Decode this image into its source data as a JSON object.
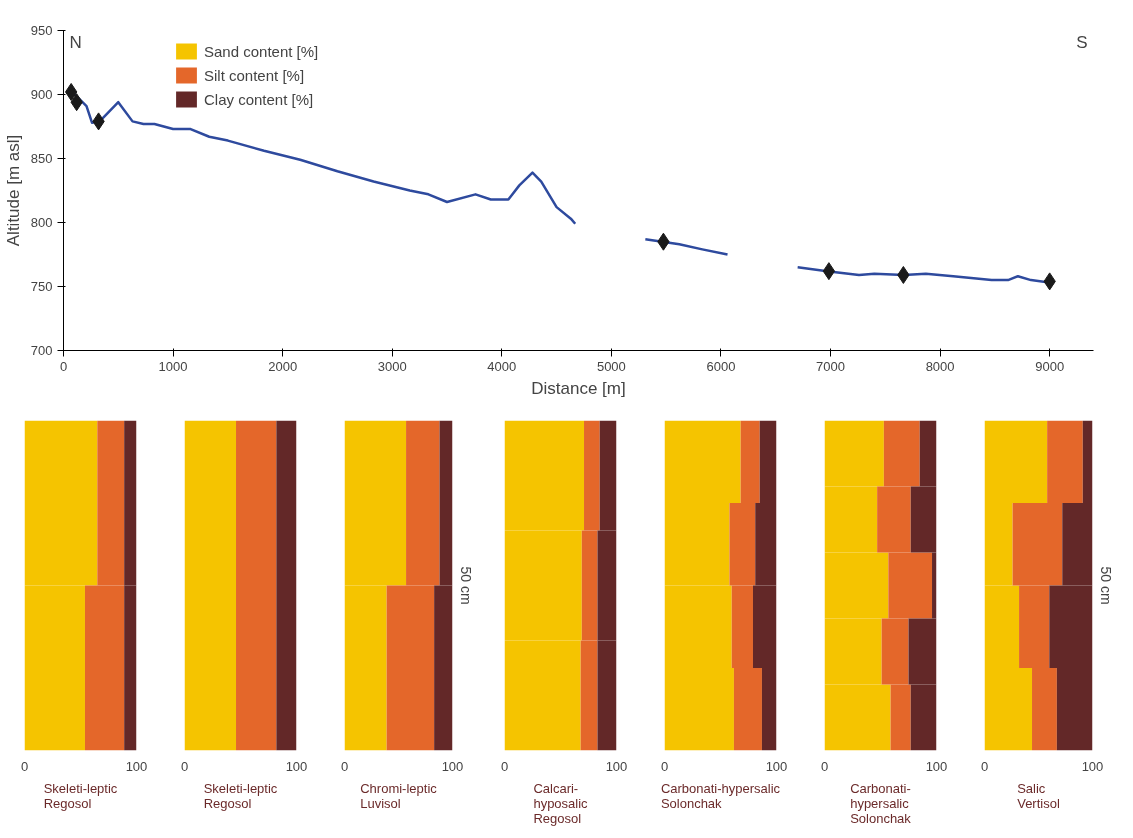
{
  "chart_data": [
    {
      "type": "line",
      "xlabel": "Distance [m]",
      "ylabel": "Altitude [m asl]",
      "xlim": [
        0,
        9400
      ],
      "ylim": [
        700,
        950
      ],
      "xticks": [
        0,
        1000,
        2000,
        3000,
        4000,
        5000,
        6000,
        7000,
        8000,
        9000
      ],
      "yticks": [
        700,
        750,
        800,
        850,
        900,
        950
      ],
      "grid": false,
      "annotations": [
        "N",
        "S"
      ],
      "series": [
        {
          "type": "line",
          "color": "#2e4a9e",
          "x": [
            80,
            210,
            260,
            330,
            500,
            630,
            730,
            830,
            1000,
            1160,
            1330,
            1500,
            1830,
            2160,
            2500,
            2830,
            3160,
            3330,
            3500,
            3760,
            3900,
            4060,
            4160,
            4280,
            4360,
            4500,
            4630,
            4670,
            4700,
            5310,
            5620,
            5830,
            6060,
            6400,
            6700,
            6970,
            7260,
            7400,
            7670,
            7870,
            8120,
            8470,
            8620,
            8710,
            8830,
            9010
          ],
          "values": [
            902,
            891,
            878,
            879,
            894,
            879,
            877,
            877,
            873,
            873,
            867,
            864,
            856,
            849,
            840,
            832,
            825,
            822,
            816,
            822,
            818,
            818,
            829,
            839,
            832,
            812,
            803,
            799,
            null,
            787,
            783,
            779,
            775,
            null,
            765,
            762,
            759,
            760,
            759,
            760,
            758,
            755,
            755,
            758,
            755,
            753
          ]
        },
        {
          "type": "scatter",
          "marker": "diamond",
          "color": "#1a1a1a",
          "x": [
            70,
            120,
            320,
            5475,
            6985,
            7665,
            9000
          ],
          "values": [
            902,
            894,
            879,
            785,
            762,
            759,
            754
          ]
        }
      ]
    },
    {
      "type": "bar",
      "orientation": "horizontal",
      "stacked": true,
      "title": "Skeleti-leptic\nRegosol",
      "categories": [
        null,
        null
      ],
      "xlim": [
        0,
        100
      ],
      "xticks": [
        0,
        100
      ],
      "tick_labels": "x",
      "legend": "top right",
      "series": [
        {
          "name": "Sand content [%]",
          "color": "#f5c400",
          "values": [
            65,
            54
          ]
        },
        {
          "name": "Silt content [%]",
          "color": "#e4672a",
          "values": [
            24,
            35
          ]
        },
        {
          "name": "Clay content [%]",
          "color": "#632828",
          "values": [
            11,
            11
          ]
        }
      ]
    },
    {
      "type": "bar",
      "orientation": "horizontal",
      "stacked": true,
      "title": "Skeleti-leptic\nRegosol",
      "categories": [
        null
      ],
      "xlim": [
        0,
        100
      ],
      "xticks": [
        0,
        100
      ],
      "tick_labels": "x",
      "series": [
        {
          "color": "#f5c400",
          "values": [
            46
          ]
        },
        {
          "color": "#e4672a",
          "values": [
            36
          ]
        },
        {
          "color": "#632828",
          "values": [
            18
          ]
        }
      ]
    },
    {
      "type": "bar",
      "orientation": "horizontal",
      "stacked": true,
      "title": "Chromi-leptic\nLuvisol",
      "categories": [
        null,
        null
      ],
      "xlim": [
        0,
        100
      ],
      "xticks": [
        0,
        100
      ],
      "tick_labels": "x",
      "annotations": [
        "50 cm"
      ],
      "series": [
        {
          "color": "#f5c400",
          "values": [
            57,
            39
          ]
        },
        {
          "color": "#e4672a",
          "values": [
            31,
            44
          ]
        },
        {
          "color": "#632828",
          "values": [
            12,
            17
          ]
        }
      ]
    },
    {
      "type": "bar",
      "orientation": "horizontal",
      "stacked": true,
      "title": "Calcari-\nhyposalic\nRegosol",
      "categories": [
        null,
        null,
        null
      ],
      "xlim": [
        0,
        100
      ],
      "xticks": [
        0,
        100
      ],
      "tick_labels": "x",
      "series": [
        {
          "color": "#f5c400",
          "values": [
            71,
            69,
            68
          ]
        },
        {
          "color": "#e4672a",
          "values": [
            14,
            14,
            15
          ]
        },
        {
          "color": "#632828",
          "values": [
            15,
            17,
            17
          ]
        }
      ]
    },
    {
      "type": "bar",
      "orientation": "horizontal",
      "stacked": true,
      "title": "Carbonati-hypersalic\nSolonchak",
      "categories": [
        null,
        null,
        null,
        null
      ],
      "xlim": [
        0,
        100
      ],
      "xticks": [
        0,
        100
      ],
      "tick_labels": "x",
      "series": [
        {
          "color": "#f5c400",
          "values": [
            68,
            58,
            60,
            62
          ]
        },
        {
          "color": "#e4672a",
          "values": [
            17,
            23,
            19,
            25
          ]
        },
        {
          "color": "#632828",
          "values": [
            15,
            19,
            21,
            13
          ]
        }
      ]
    },
    {
      "type": "bar",
      "orientation": "horizontal",
      "stacked": true,
      "title": "Carbonati-\nhypersalic\nSolonchak",
      "categories": [
        null,
        null,
        null,
        null,
        null
      ],
      "xlim": [
        0,
        100
      ],
      "xticks": [
        0,
        100
      ],
      "tick_labels": "x",
      "series": [
        {
          "color": "#f5c400",
          "values": [
            53,
            47,
            57,
            51,
            59
          ]
        },
        {
          "color": "#e4672a",
          "values": [
            32,
            30,
            39,
            24,
            18
          ]
        },
        {
          "color": "#632828",
          "values": [
            15,
            23,
            4,
            25,
            23
          ]
        }
      ]
    },
    {
      "type": "bar",
      "orientation": "horizontal",
      "stacked": true,
      "title": "Salic\nVertisol",
      "categories": [
        null,
        null,
        null,
        null
      ],
      "xlim": [
        0,
        100
      ],
      "xticks": [
        0,
        100
      ],
      "tick_labels": "x",
      "annotations": [
        "50 cm"
      ],
      "series": [
        {
          "color": "#f5c400",
          "values": [
            58,
            26,
            32,
            44
          ]
        },
        {
          "color": "#e4672a",
          "values": [
            33,
            46,
            28,
            23
          ]
        },
        {
          "color": "#632828",
          "values": [
            9,
            28,
            40,
            33
          ]
        }
      ]
    }
  ]
}
